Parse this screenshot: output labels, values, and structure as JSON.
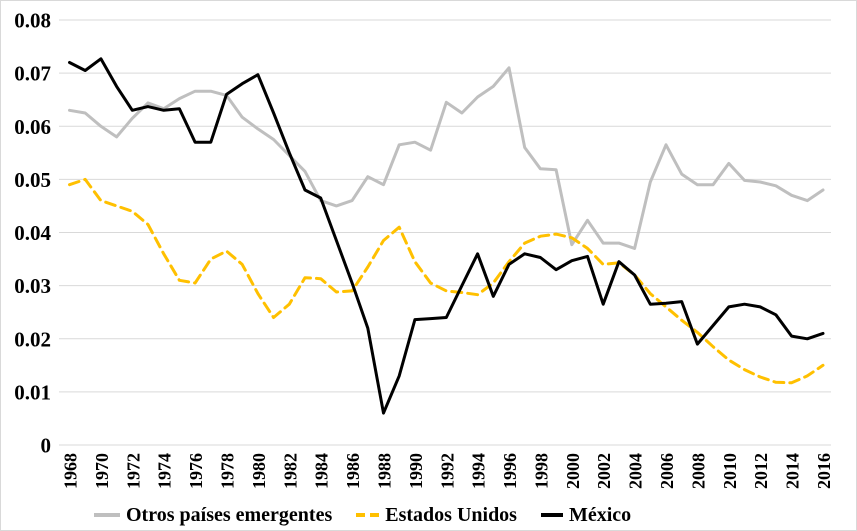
{
  "chart_data": {
    "type": "line",
    "title": "",
    "xlabel": "",
    "ylabel": "",
    "x_start": 1968,
    "x_end": 2016,
    "x_step": 1,
    "xticks": [
      "1968",
      "1970",
      "1972",
      "1974",
      "1976",
      "1978",
      "1980",
      "1982",
      "1984",
      "1986",
      "1988",
      "1990",
      "1992",
      "1994",
      "1996",
      "1998",
      "2000",
      "2002",
      "2004",
      "2006",
      "2008",
      "2010",
      "2012",
      "2014",
      "2016"
    ],
    "yticks": [
      "0.08",
      "0.07",
      "0.06",
      "0.05",
      "0.04",
      "0.03",
      "0.02",
      "0.01",
      "0"
    ],
    "ylim": [
      0,
      0.08
    ],
    "grid": true,
    "gridline_color": "#d9d9d9",
    "text_color": "#000000",
    "legend_position": "bottom",
    "series": [
      {
        "name": "Otros países emergentes",
        "color": "#bfbfbf",
        "dash": "solid",
        "values": [
          0.063,
          0.0625,
          0.06,
          0.058,
          0.0615,
          0.0644,
          0.0633,
          0.0652,
          0.0666,
          0.0666,
          0.0658,
          0.0617,
          0.0595,
          0.0575,
          0.0545,
          0.0515,
          0.046,
          0.045,
          0.046,
          0.0505,
          0.049,
          0.0565,
          0.057,
          0.0555,
          0.0645,
          0.0625,
          0.0655,
          0.0675,
          0.071,
          0.056,
          0.052,
          0.0518,
          0.0377,
          0.0423,
          0.038,
          0.038,
          0.037,
          0.0495,
          0.0565,
          0.051,
          0.049,
          0.049,
          0.053,
          0.0498,
          0.0495,
          0.0488,
          0.047,
          0.046,
          0.048
        ]
      },
      {
        "name": "Estados Unidos",
        "color": "#ffc000",
        "dash": "dashed",
        "values": [
          0.049,
          0.05,
          0.046,
          0.045,
          0.044,
          0.0415,
          0.036,
          0.031,
          0.0305,
          0.035,
          0.0365,
          0.034,
          0.0285,
          0.024,
          0.0265,
          0.0315,
          0.0313,
          0.0288,
          0.029,
          0.0335,
          0.0385,
          0.041,
          0.0345,
          0.0305,
          0.029,
          0.0287,
          0.0283,
          0.0305,
          0.0345,
          0.038,
          0.0393,
          0.0397,
          0.039,
          0.037,
          0.034,
          0.0343,
          0.032,
          0.0285,
          0.026,
          0.0235,
          0.0212,
          0.0185,
          0.016,
          0.0142,
          0.0128,
          0.0118,
          0.0117,
          0.013,
          0.015
        ]
      },
      {
        "name": "México",
        "color": "#000000",
        "dash": "solid",
        "values": [
          0.072,
          0.0705,
          0.0727,
          0.0675,
          0.063,
          0.0637,
          0.063,
          0.0633,
          0.057,
          0.057,
          0.066,
          0.068,
          0.0697,
          0.0625,
          0.055,
          0.048,
          0.0465,
          0.0385,
          0.0305,
          0.022,
          0.006,
          0.013,
          0.0236,
          0.0238,
          0.024,
          0.03,
          0.036,
          0.028,
          0.034,
          0.036,
          0.0353,
          0.033,
          0.0347,
          0.0355,
          0.0265,
          0.0345,
          0.032,
          0.0265,
          0.0267,
          0.027,
          0.019,
          0.0225,
          0.026,
          0.0265,
          0.026,
          0.0245,
          0.0205,
          0.02,
          0.021
        ]
      }
    ]
  },
  "legend": {
    "items": [
      {
        "label": "Otros países emergentes"
      },
      {
        "label": "Estados Unidos"
      },
      {
        "label": "México"
      }
    ]
  }
}
